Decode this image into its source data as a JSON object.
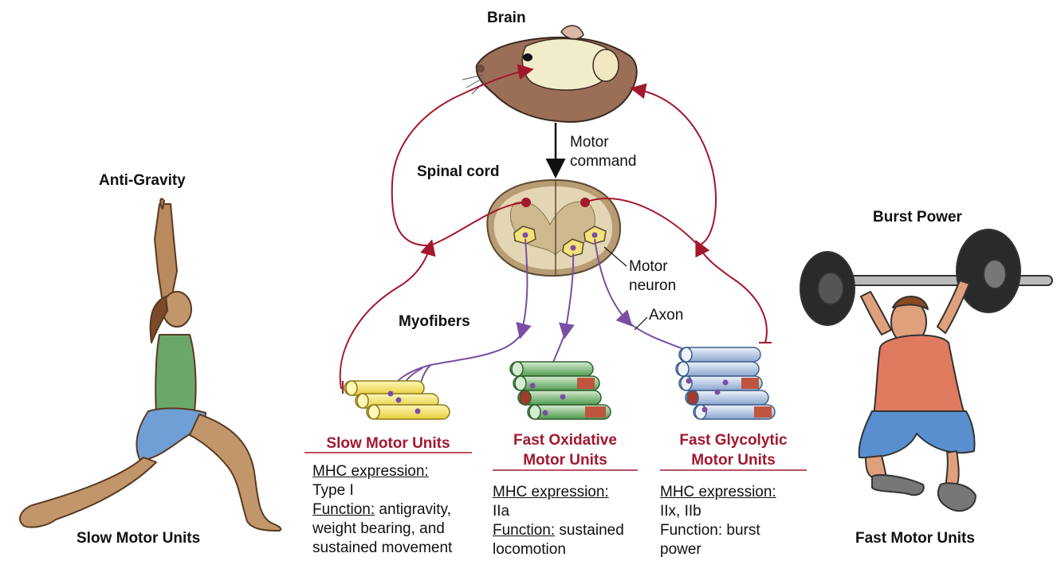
{
  "labels": {
    "brain": "Brain",
    "motor_command_1": "Motor",
    "motor_command_2": "command",
    "spinal_cord": "Spinal cord",
    "motor_neuron_1": "Motor",
    "motor_neuron_2": "neuron",
    "axon": "Axon",
    "myofibers": "Myofibers",
    "anti_gravity": "Anti-Gravity",
    "burst_power": "Burst Power",
    "slow_motor_units_bottom": "Slow Motor Units",
    "fast_motor_units_bottom": "Fast Motor Units"
  },
  "units": [
    {
      "title_1": "Slow Motor Units",
      "title_2": "",
      "mhc_label": "MHC expression:",
      "mhc_value": "Type I",
      "function_label": "Function:",
      "function_value_1": " antigravity,",
      "function_value_2": "weight bearing, and",
      "function_value_3": "sustained movement"
    },
    {
      "title_1": "Fast Oxidative",
      "title_2": "Motor Units",
      "mhc_label": "MHC expression:",
      "mhc_value": "IIa",
      "function_label": "Function:",
      "function_value_1": " sustained",
      "function_value_2": "locomotion",
      "function_value_3": ""
    },
    {
      "title_1": "Fast Glycolytic",
      "title_2": "Motor Units",
      "mhc_label": "MHC expression:",
      "mhc_value": "IIx, IIb",
      "function_label": "Function: burst",
      "function_value_1": "",
      "function_value_2": "power",
      "function_value_3": ""
    }
  ],
  "colors": {
    "sensory_red": "#a3182e",
    "axon_purple": "#7a4fa3",
    "slow_fiber_yellow": "#f3e36a",
    "fast_ox_green": "#5faa5f",
    "fast_gly_blue": "#9db6d8",
    "spinal_tan": "#d9c9a3"
  }
}
